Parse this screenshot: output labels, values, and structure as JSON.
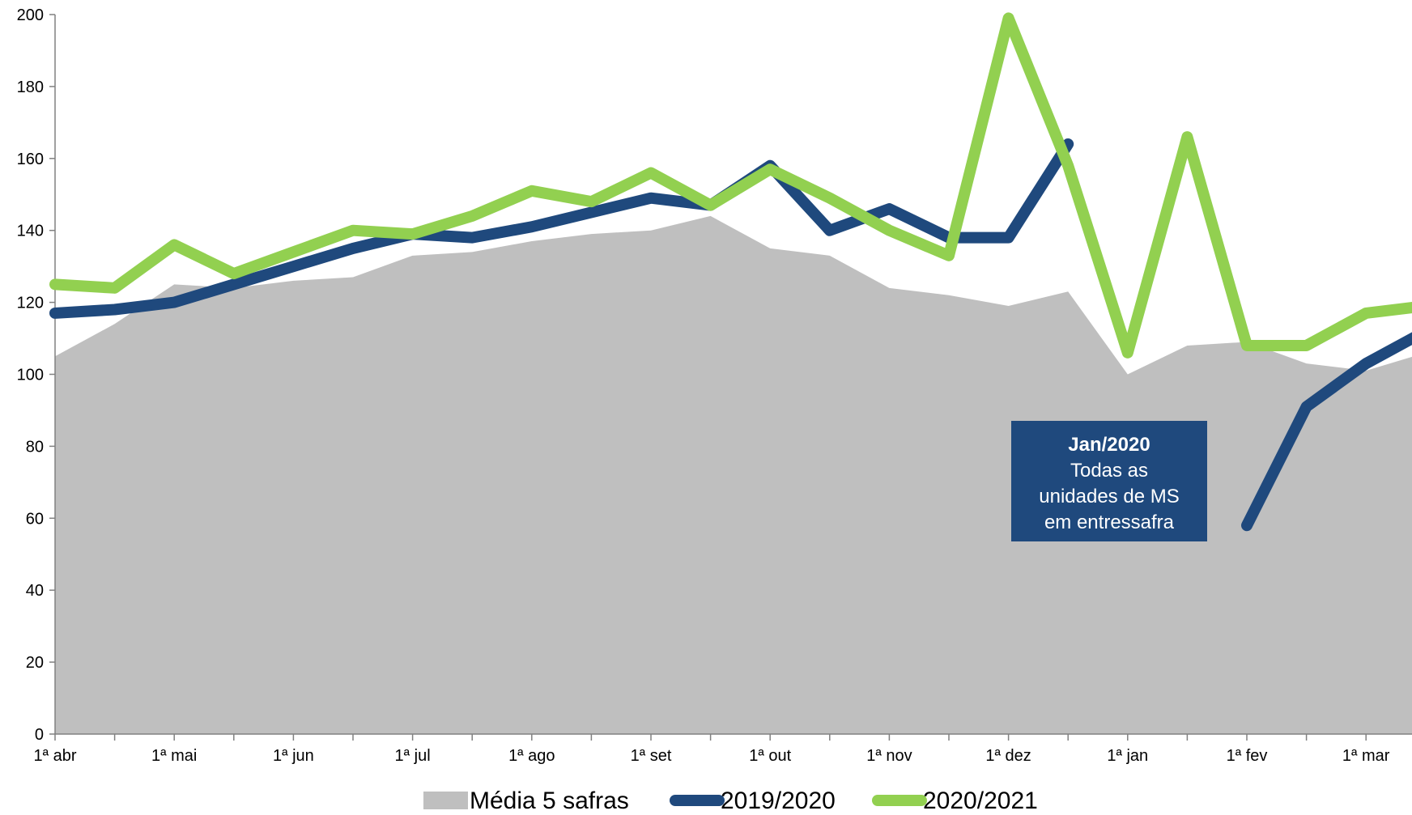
{
  "colors": {
    "area": "#bfbfbf",
    "line_2019": "#1f497d",
    "line_2020": "#92d050",
    "axis": "#808080",
    "annotation_bg": "#1f497d"
  },
  "chart_data": {
    "type": "line",
    "x": [
      0,
      1,
      2,
      3,
      4,
      5,
      6,
      7,
      8,
      9,
      10,
      11,
      12,
      13,
      14,
      15,
      16,
      17,
      18,
      19,
      20,
      21,
      22,
      23
    ],
    "x_ticks": [
      {
        "x": 0,
        "label": "1ª abr"
      },
      {
        "x": 2,
        "label": "1ª mai"
      },
      {
        "x": 4,
        "label": "1ª jun"
      },
      {
        "x": 6,
        "label": "1ª jul"
      },
      {
        "x": 8,
        "label": "1ª ago"
      },
      {
        "x": 10,
        "label": "1ª set"
      },
      {
        "x": 12,
        "label": "1ª out"
      },
      {
        "x": 14,
        "label": "1ª nov"
      },
      {
        "x": 16,
        "label": "1ª dez"
      },
      {
        "x": 18,
        "label": "1ª jan"
      },
      {
        "x": 20,
        "label": "1ª fev"
      },
      {
        "x": 22,
        "label": "1ª mar"
      }
    ],
    "y_ticks": [
      0,
      20,
      40,
      60,
      80,
      100,
      120,
      140,
      160,
      180,
      200
    ],
    "ylim": [
      0,
      200
    ],
    "series": [
      {
        "name": "Média 5 safras",
        "style": "area",
        "values": [
          105,
          114,
          125,
          124,
          126,
          127,
          133,
          134,
          137,
          139,
          140,
          144,
          135,
          133,
          124,
          122,
          119,
          123,
          100,
          108,
          109,
          103,
          101,
          106
        ]
      },
      {
        "name": "2019/2020",
        "style": "line",
        "values": [
          117,
          118,
          120,
          125,
          130,
          135,
          139,
          138,
          141,
          145,
          149,
          147,
          158,
          140,
          146,
          138,
          138,
          164,
          null,
          null,
          58,
          91,
          103,
          112
        ]
      },
      {
        "name": "2020/2021",
        "style": "line",
        "values": [
          125,
          124,
          136,
          128,
          134,
          140,
          139,
          144,
          151,
          148,
          156,
          147,
          157,
          149,
          140,
          133,
          199,
          158,
          106,
          166,
          108,
          108,
          117,
          119
        ]
      }
    ],
    "legend": {
      "position": "bottom",
      "items": [
        "Média 5 safras",
        "2019/2020",
        "2020/2021"
      ]
    },
    "annotation": {
      "title": "Jan/2020",
      "lines": [
        "Todas as",
        "unidades de MS",
        "em entressafra"
      ]
    }
  }
}
